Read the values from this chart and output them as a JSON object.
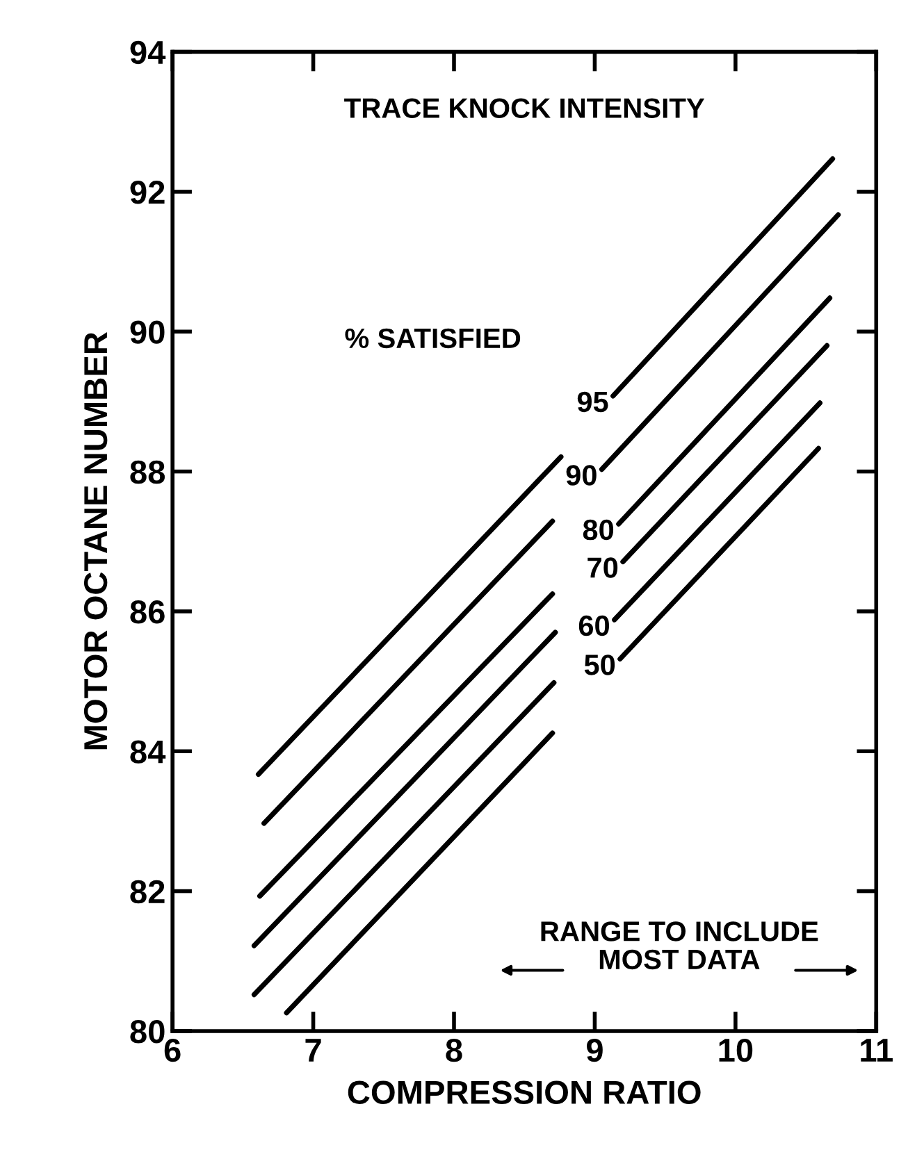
{
  "chart_data": {
    "type": "line",
    "xlabel": "COMPRESSION RATIO",
    "ylabel": "MOTOR OCTANE NUMBER",
    "annotations": [
      "TRACE KNOCK INTENSITY",
      "% SATISFIED",
      "RANGE TO INCLUDE\nMOST DATA"
    ],
    "xlim": [
      6,
      11
    ],
    "xticks": [
      6,
      7,
      8,
      9,
      10,
      11
    ],
    "ylim": [
      80,
      94
    ],
    "yticks": [
      80,
      82,
      84,
      86,
      88,
      90,
      92,
      94
    ],
    "grid": false,
    "legend": false,
    "marker": "none",
    "line_style": "solid",
    "series": [
      {
        "name": "95",
        "color": "#000000",
        "x": [
          6.61,
          8.76,
          null,
          9.13,
          10.69
        ],
        "values": [
          83.67,
          88.21,
          null,
          89.08,
          92.47
        ]
      },
      {
        "name": "90",
        "color": "#000000",
        "x": [
          6.65,
          8.7,
          null,
          9.05,
          10.73
        ],
        "values": [
          82.97,
          87.29,
          null,
          88.03,
          91.67
        ]
      },
      {
        "name": "80",
        "color": "#000000",
        "x": [
          6.62,
          8.7,
          null,
          9.17,
          10.67
        ],
        "values": [
          81.93,
          86.25,
          null,
          87.25,
          90.48
        ]
      },
      {
        "name": "70",
        "color": "#000000",
        "x": [
          6.58,
          8.72,
          null,
          9.2,
          10.65
        ],
        "values": [
          81.22,
          85.7,
          null,
          86.71,
          89.8
        ]
      },
      {
        "name": "60",
        "color": "#000000",
        "x": [
          6.58,
          8.71,
          null,
          9.14,
          10.6
        ],
        "values": [
          80.52,
          84.98,
          null,
          85.88,
          88.98
        ]
      },
      {
        "name": "50",
        "color": "#000000",
        "x": [
          6.81,
          8.7,
          null,
          9.18,
          10.59
        ],
        "values": [
          80.26,
          84.26,
          null,
          85.32,
          88.33
        ]
      }
    ]
  }
}
